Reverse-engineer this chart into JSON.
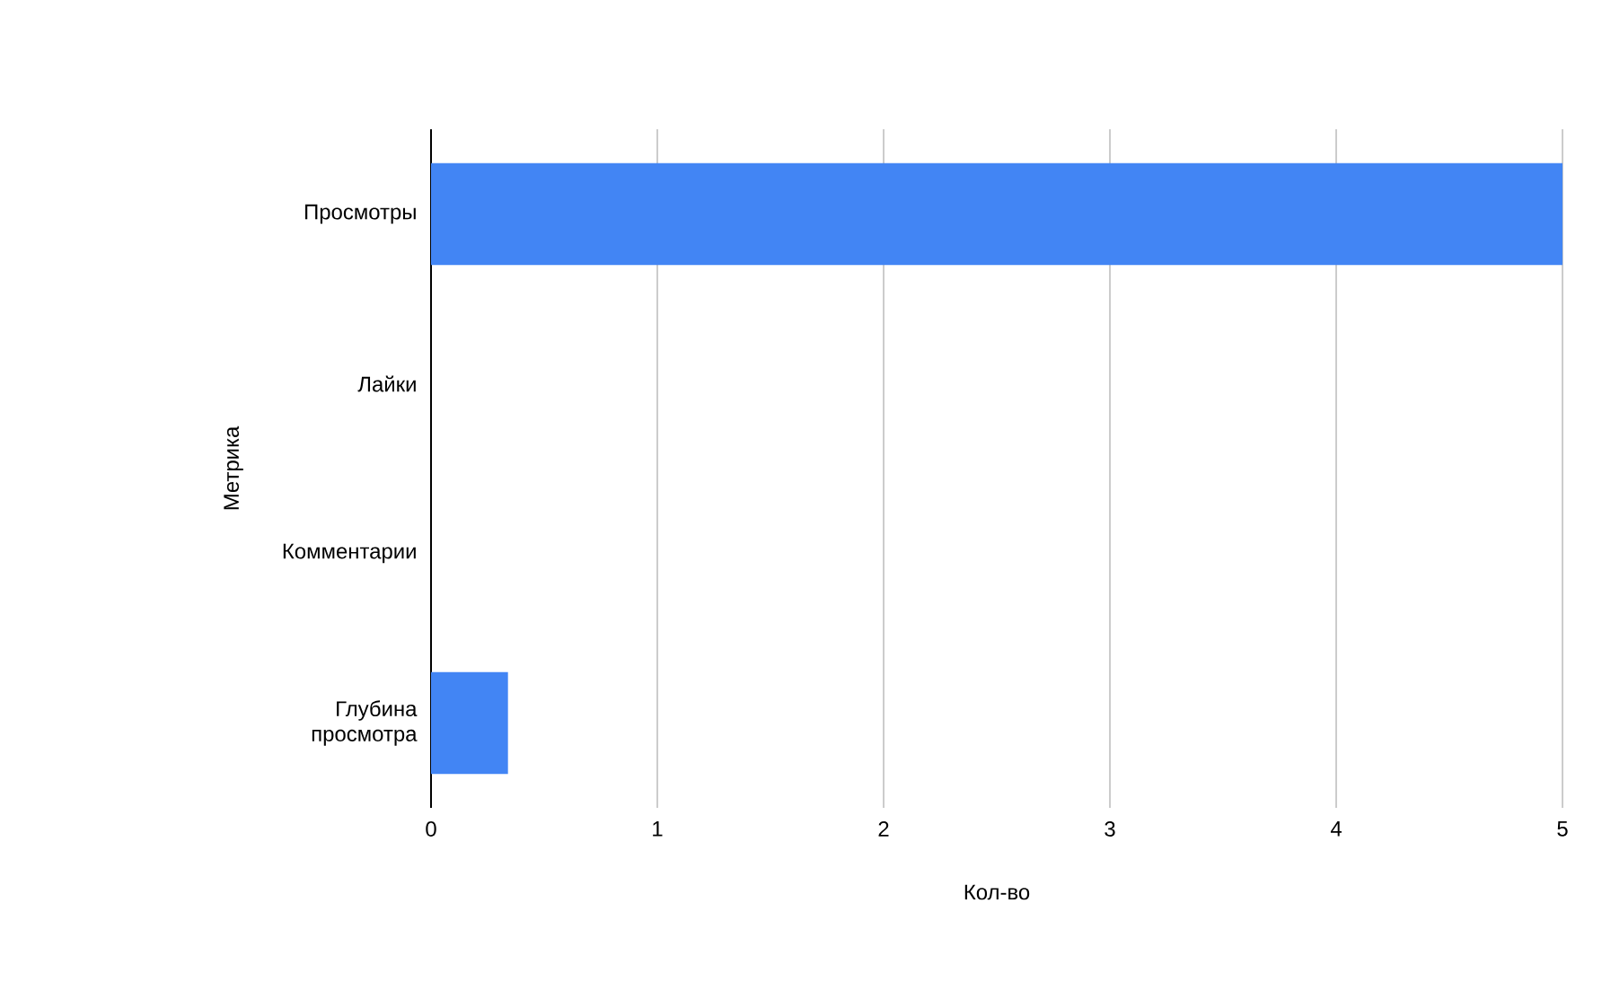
{
  "chart_data": {
    "type": "bar",
    "orientation": "horizontal",
    "categories": [
      "Просмотры",
      "Лайки",
      "Комментарии",
      "Глубина просмотра"
    ],
    "values": [
      5,
      0,
      0,
      0.34
    ],
    "color": "#4285f4",
    "xlim": [
      0,
      5
    ],
    "xticks": [
      0,
      1,
      2,
      3,
      4,
      5
    ],
    "grid": "x",
    "xlabel": "Кол-во",
    "ylabel": "Метрика"
  }
}
